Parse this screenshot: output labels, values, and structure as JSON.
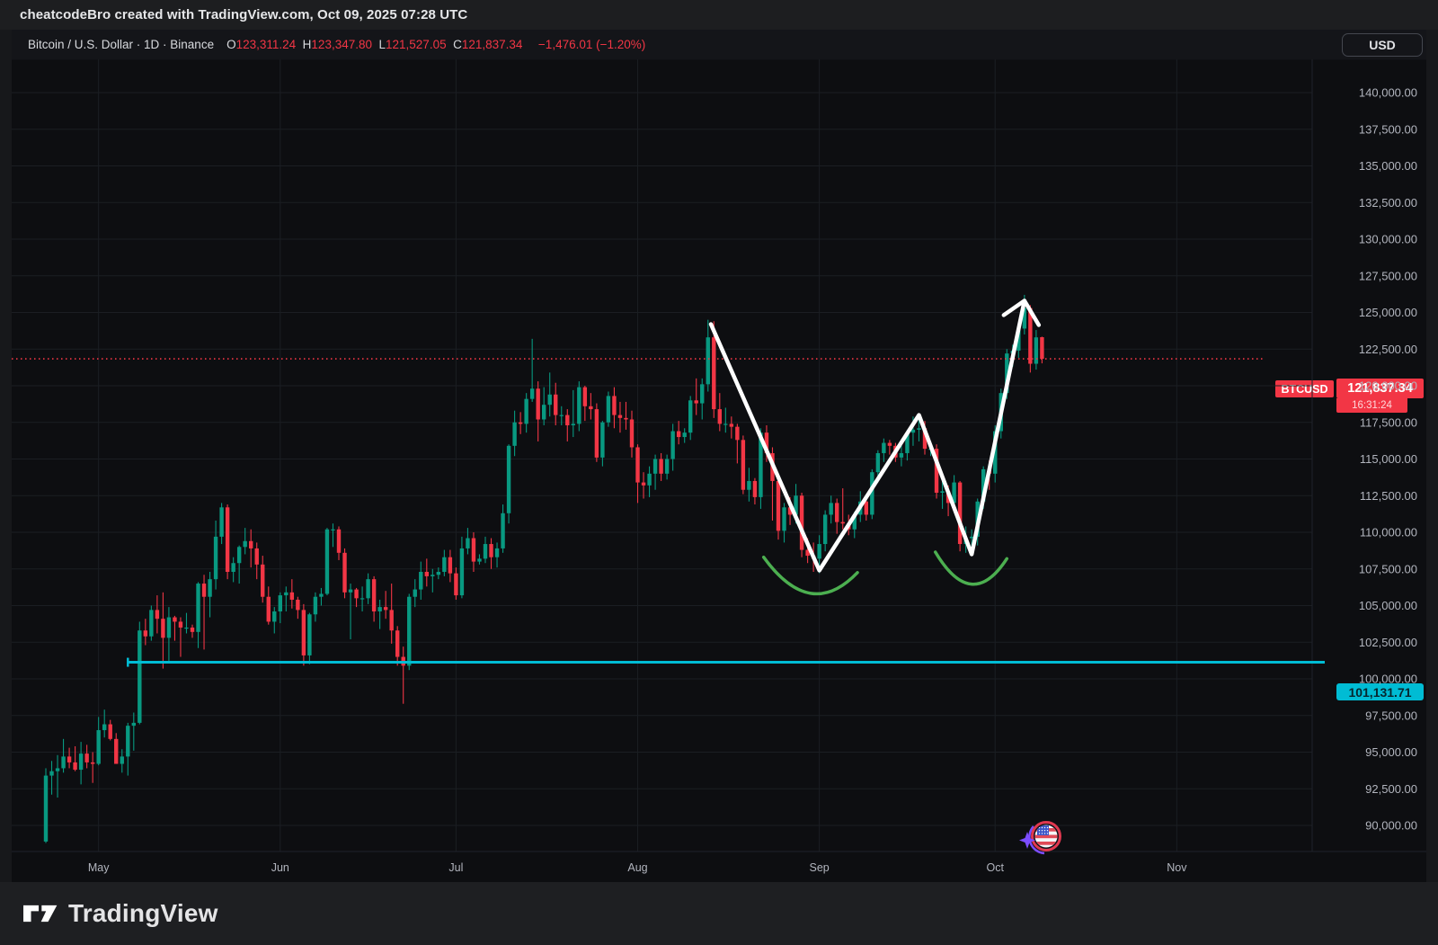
{
  "top_bar": {
    "attribution": "cheatcodeBro created with TradingView.com, Oct 09, 2025 07:28 UTC"
  },
  "header": {
    "symbol_line": "Bitcoin / U.S. Dollar · 1D · Binance",
    "ohlc": [
      [
        "O",
        "123,311.24"
      ],
      [
        "H",
        "123,347.80"
      ],
      [
        "L",
        "121,527.05"
      ],
      [
        "C",
        "121,837.34"
      ]
    ],
    "change": "−1,476.01 (−1.20%)",
    "currency_button": "USD"
  },
  "chart_data": {
    "type": "candlestick",
    "symbol": "BTCUSD",
    "exchange": "Binance",
    "interval": "1D",
    "start_date": "2025-04-22",
    "colors": {
      "up": "#089981",
      "down": "#f23645",
      "current_price_line": "#f23645",
      "horizontal_line": "#00bcd4",
      "drawing": "#ffffff",
      "arc": "#4caf50"
    },
    "y_axis": {
      "min": 90000,
      "max": 140000,
      "step": 2500,
      "ticks": [
        {
          "value": 140000,
          "label": "140,000.00"
        },
        {
          "value": 137500,
          "label": "137,500.00"
        },
        {
          "value": 135000,
          "label": "135,000.00"
        },
        {
          "value": 132500,
          "label": "132,500.00"
        },
        {
          "value": 130000,
          "label": "130,000.00"
        },
        {
          "value": 127500,
          "label": "127,500.00"
        },
        {
          "value": 125000,
          "label": "125,000.00"
        },
        {
          "value": 122500,
          "label": "122,500.00"
        },
        {
          "value": 120000,
          "label": "120,000.00"
        },
        {
          "value": 117500,
          "label": "117,500.00"
        },
        {
          "value": 115000,
          "label": "115,000.00"
        },
        {
          "value": 112500,
          "label": "112,500.00"
        },
        {
          "value": 110000,
          "label": "110,000.00"
        },
        {
          "value": 107500,
          "label": "107,500.00"
        },
        {
          "value": 105000,
          "label": "105,000.00"
        },
        {
          "value": 102500,
          "label": "102,500.00"
        },
        {
          "value": 100000,
          "label": "100,000.00"
        },
        {
          "value": 97500,
          "label": "97,500.00"
        },
        {
          "value": 95000,
          "label": "95,000.00"
        },
        {
          "value": 92500,
          "label": "92,500.00"
        },
        {
          "value": 90000,
          "label": "90,000.00"
        }
      ]
    },
    "x_axis": {
      "labels": [
        {
          "text": "May",
          "index": 9
        },
        {
          "text": "Jun",
          "index": 40
        },
        {
          "text": "Jul",
          "index": 70
        },
        {
          "text": "Aug",
          "index": 101
        },
        {
          "text": "Sep",
          "index": 132
        },
        {
          "text": "Oct",
          "index": 162
        },
        {
          "text": "Nov",
          "index": 193
        }
      ]
    },
    "current_price": {
      "value": 121837.34,
      "label": "121,837.34",
      "countdown": "16:31:24",
      "symbol_label": "BTCUSD"
    },
    "horizontal_line": {
      "price": 101131.71,
      "label": "101,131.71",
      "start_index": 14
    },
    "drawings": {
      "zigzag": {
        "points": [
          [
            113.5,
            124200
          ],
          [
            132,
            107400
          ],
          [
            149,
            118000
          ],
          [
            158,
            108500
          ],
          [
            167,
            125800
          ]
        ],
        "arrow_at_end": true
      },
      "arcs": [
        {
          "p0": [
            122.5,
            108300
          ],
          "c": [
            130.5,
            103900
          ],
          "p2": [
            138.5,
            107250
          ]
        },
        {
          "p0": [
            151.8,
            108650
          ],
          "c": [
            158.0,
            104500
          ],
          "p2": [
            164.0,
            108200
          ]
        }
      ]
    },
    "event_icon": {
      "name": "us-flag-event-icon"
    },
    "candles": [
      [
        88900,
        93900,
        88800,
        93400
      ],
      [
        93400,
        94400,
        92100,
        93700
      ],
      [
        93700,
        94800,
        91900,
        93900
      ],
      [
        93900,
        95900,
        93600,
        94700
      ],
      [
        94700,
        95300,
        93900,
        94300
      ],
      [
        94300,
        95400,
        93700,
        93800
      ],
      [
        93800,
        95700,
        92800,
        94900
      ],
      [
        94900,
        95500,
        93900,
        94300
      ],
      [
        94300,
        95000,
        92900,
        94200
      ],
      [
        94200,
        97400,
        94100,
        96500
      ],
      [
        96500,
        97900,
        96000,
        96900
      ],
      [
        96900,
        97200,
        95800,
        95900
      ],
      [
        95900,
        96300,
        94200,
        94200
      ],
      [
        94200,
        95200,
        93600,
        94700
      ],
      [
        94700,
        97000,
        93400,
        96800
      ],
      [
        96800,
        97700,
        95100,
        97000
      ],
      [
        97000,
        103900,
        96900,
        103300
      ],
      [
        103300,
        104100,
        102300,
        102900
      ],
      [
        102900,
        105000,
        102600,
        104700
      ],
      [
        104700,
        105700,
        103100,
        104100
      ],
      [
        104100,
        105900,
        100700,
        102800
      ],
      [
        102800,
        104900,
        101100,
        104200
      ],
      [
        104200,
        104300,
        102600,
        103900
      ],
      [
        103900,
        104200,
        101500,
        103500
      ],
      [
        103500,
        104500,
        103100,
        103500
      ],
      [
        103500,
        103700,
        102800,
        103200
      ],
      [
        103200,
        106600,
        102100,
        106500
      ],
      [
        106500,
        107100,
        102000,
        105600
      ],
      [
        105600,
        107300,
        104200,
        106800
      ],
      [
        106800,
        110800,
        106100,
        109700
      ],
      [
        109700,
        112000,
        109200,
        111700
      ],
      [
        111700,
        111900,
        106800,
        107300
      ],
      [
        107300,
        108300,
        106600,
        107900
      ],
      [
        107900,
        109100,
        106500,
        109000
      ],
      [
        109000,
        110300,
        108500,
        109400
      ],
      [
        109400,
        110200,
        107600,
        108900
      ],
      [
        108900,
        109300,
        106800,
        107800
      ],
      [
        107800,
        108400,
        105200,
        105600
      ],
      [
        105600,
        106300,
        103700,
        103900
      ],
      [
        103900,
        104900,
        103100,
        104600
      ],
      [
        104600,
        105900,
        103800,
        105700
      ],
      [
        105700,
        106300,
        104600,
        105900
      ],
      [
        105900,
        106800,
        104800,
        105400
      ],
      [
        105400,
        105600,
        104100,
        104700
      ],
      [
        104700,
        105100,
        100900,
        101600
      ],
      [
        101600,
        104500,
        101000,
        104400
      ],
      [
        104400,
        105900,
        103900,
        105600
      ],
      [
        105600,
        106200,
        105000,
        105800
      ],
      [
        105800,
        110300,
        105700,
        110200
      ],
      [
        110200,
        110600,
        109000,
        110200
      ],
      [
        110200,
        110400,
        108100,
        108600
      ],
      [
        108600,
        108900,
        105500,
        105900
      ],
      [
        105900,
        106500,
        102700,
        106100
      ],
      [
        106100,
        106200,
        104900,
        105500
      ],
      [
        105500,
        106300,
        104600,
        105500
      ],
      [
        105500,
        107200,
        105100,
        106800
      ],
      [
        106800,
        107000,
        103900,
        104600
      ],
      [
        104600,
        105400,
        103400,
        104900
      ],
      [
        104900,
        106000,
        104100,
        104700
      ],
      [
        104700,
        106500,
        102400,
        103300
      ],
      [
        103300,
        103600,
        100900,
        101500
      ],
      [
        101500,
        102200,
        98300,
        100900
      ],
      [
        100900,
        105800,
        100600,
        105600
      ],
      [
        105600,
        106800,
        104900,
        106100
      ],
      [
        106100,
        108000,
        105400,
        107300
      ],
      [
        107300,
        108200,
        106300,
        107000
      ],
      [
        107000,
        107500,
        105900,
        107100
      ],
      [
        107100,
        107600,
        106800,
        107300
      ],
      [
        107300,
        108800,
        107000,
        108300
      ],
      [
        108300,
        108800,
        106600,
        107200
      ],
      [
        107200,
        107600,
        105400,
        105700
      ],
      [
        105700,
        109700,
        105500,
        108900
      ],
      [
        108900,
        110300,
        108500,
        109600
      ],
      [
        109600,
        110000,
        107300,
        108000
      ],
      [
        108000,
        108500,
        107800,
        108200
      ],
      [
        108200,
        109700,
        107900,
        109200
      ],
      [
        109200,
        109600,
        107500,
        108300
      ],
      [
        108300,
        109300,
        107600,
        108900
      ],
      [
        108900,
        111900,
        108600,
        111300
      ],
      [
        111300,
        116000,
        110600,
        115900
      ],
      [
        115900,
        118300,
        115200,
        117500
      ],
      [
        117500,
        118200,
        116700,
        117400
      ],
      [
        117400,
        119500,
        116800,
        119100
      ],
      [
        119100,
        123200,
        118900,
        119800
      ],
      [
        119800,
        120300,
        116200,
        117700
      ],
      [
        117700,
        119900,
        117300,
        118700
      ],
      [
        118700,
        120900,
        117900,
        119400
      ],
      [
        119400,
        120200,
        117300,
        118000
      ],
      [
        118000,
        118600,
        117300,
        118000
      ],
      [
        118000,
        118400,
        116200,
        117300
      ],
      [
        117300,
        119700,
        116500,
        117400
      ],
      [
        117400,
        120300,
        116900,
        119900
      ],
      [
        119900,
        120000,
        117600,
        118600
      ],
      [
        118600,
        119500,
        117700,
        118400
      ],
      [
        118400,
        118800,
        114800,
        115100
      ],
      [
        115100,
        117600,
        114500,
        117500
      ],
      [
        117500,
        119600,
        117200,
        119300
      ],
      [
        119300,
        119900,
        117100,
        118000
      ],
      [
        118000,
        118900,
        116800,
        117800
      ],
      [
        117800,
        118900,
        117000,
        117700
      ],
      [
        117700,
        118300,
        115100,
        115800
      ],
      [
        115800,
        116000,
        112000,
        113400
      ],
      [
        113400,
        114100,
        112300,
        113200
      ],
      [
        113200,
        114500,
        112400,
        114000
      ],
      [
        114000,
        115300,
        112900,
        115000
      ],
      [
        115000,
        115400,
        113500,
        114000
      ],
      [
        114000,
        115300,
        113600,
        115000
      ],
      [
        115000,
        117400,
        114200,
        116900
      ],
      [
        116900,
        117600,
        116000,
        116500
      ],
      [
        116500,
        117100,
        116100,
        116800
      ],
      [
        116800,
        119300,
        116300,
        119000
      ],
      [
        119000,
        120500,
        118000,
        118800
      ],
      [
        118800,
        120500,
        117700,
        120100
      ],
      [
        120100,
        124500,
        119600,
        123300
      ],
      [
        123300,
        124400,
        117800,
        118400
      ],
      [
        118400,
        119500,
        116900,
        117400
      ],
      [
        117400,
        118500,
        116800,
        117400
      ],
      [
        117400,
        117900,
        116400,
        117200
      ],
      [
        117200,
        117400,
        114700,
        116300
      ],
      [
        116300,
        116600,
        112600,
        112900
      ],
      [
        112900,
        114400,
        112100,
        113500
      ],
      [
        113500,
        113700,
        111900,
        112400
      ],
      [
        112400,
        117100,
        111600,
        116800
      ],
      [
        116800,
        117300,
        114800,
        115400
      ],
      [
        115400,
        115800,
        110800,
        113500
      ],
      [
        113500,
        113600,
        109500,
        110100
      ],
      [
        110100,
        112000,
        109300,
        111700
      ],
      [
        111700,
        112400,
        110500,
        111200
      ],
      [
        111200,
        113300,
        110600,
        112500
      ],
      [
        112500,
        112700,
        108300,
        108800
      ],
      [
        108800,
        109600,
        107900,
        108400
      ],
      [
        108400,
        109300,
        107300,
        108200
      ],
      [
        108200,
        109800,
        107200,
        109200
      ],
      [
        109200,
        111500,
        108700,
        111200
      ],
      [
        111200,
        112500,
        110600,
        112000
      ],
      [
        112000,
        112300,
        109900,
        110700
      ],
      [
        110700,
        113000,
        110200,
        110600
      ],
      [
        110600,
        111200,
        109800,
        110200
      ],
      [
        110200,
        111400,
        109600,
        111200
      ],
      [
        111200,
        112800,
        110700,
        112100
      ],
      [
        112100,
        112500,
        110800,
        111200
      ],
      [
        111200,
        114300,
        110900,
        114100
      ],
      [
        114100,
        115600,
        113400,
        115400
      ],
      [
        115400,
        116400,
        114800,
        116100
      ],
      [
        116100,
        116300,
        115300,
        115900
      ],
      [
        115900,
        116100,
        114800,
        115100
      ],
      [
        115100,
        116000,
        114500,
        115400
      ],
      [
        115400,
        117000,
        114900,
        116800
      ],
      [
        116800,
        117900,
        115900,
        117000
      ],
      [
        117000,
        117900,
        116200,
        117100
      ],
      [
        117100,
        117600,
        115300,
        115700
      ],
      [
        115700,
        116200,
        115200,
        115700
      ],
      [
        115700,
        116000,
        112300,
        112700
      ],
      [
        112700,
        113500,
        111600,
        112800
      ],
      [
        112800,
        113200,
        111100,
        112000
      ],
      [
        112000,
        113900,
        111500,
        113400
      ],
      [
        113400,
        113500,
        108700,
        109200
      ],
      [
        109200,
        110400,
        108600,
        109600
      ],
      [
        109600,
        110200,
        108900,
        109700
      ],
      [
        109700,
        112300,
        109100,
        112100
      ],
      [
        112100,
        114500,
        111600,
        114300
      ],
      [
        114300,
        114900,
        112900,
        114000
      ],
      [
        114000,
        117300,
        113400,
        116900
      ],
      [
        116900,
        119800,
        116400,
        119500
      ],
      [
        119500,
        122500,
        119100,
        122200
      ],
      [
        122200,
        122800,
        121300,
        122400
      ],
      [
        122400,
        124100,
        121900,
        123900
      ],
      [
        123900,
        126200,
        123500,
        125300
      ],
      [
        125300,
        125500,
        120900,
        121500
      ],
      [
        121500,
        123800,
        121100,
        123300
      ],
      [
        123311,
        123348,
        121527,
        121837
      ]
    ]
  },
  "footer": {
    "logo_text": "TradingView"
  }
}
